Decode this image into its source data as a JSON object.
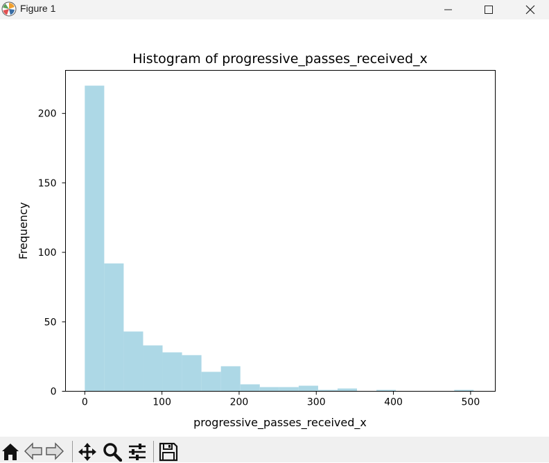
{
  "window": {
    "title": "Figure 1"
  },
  "toolbar": {
    "tools": [
      "home-icon",
      "back-icon",
      "forward-icon",
      "pan-icon",
      "zoom-icon",
      "configure-subplots-icon",
      "save-icon"
    ]
  },
  "chart_data": {
    "type": "bar",
    "title": "Histogram of progressive_passes_received_x",
    "xlabel": "progressive_passes_received_x",
    "ylabel": "Frequency",
    "bar_color": "#add8e6",
    "xlim": [
      -25,
      532
    ],
    "ylim": [
      0,
      231
    ],
    "xticks": [
      0,
      100,
      200,
      300,
      400,
      500
    ],
    "yticks": [
      0,
      50,
      100,
      150,
      200
    ],
    "bin_edges": [
      0,
      25.2,
      50.4,
      75.6,
      100.8,
      126,
      151.2,
      176.4,
      201.6,
      226.8,
      252,
      277.2,
      302.4,
      327.6,
      352.8,
      378,
      403.2,
      428.4,
      453.6,
      478.8,
      504
    ],
    "values": [
      220,
      92,
      43,
      33,
      28,
      26,
      14,
      18,
      5,
      3,
      3,
      4,
      1,
      2,
      0,
      1,
      0,
      0,
      0,
      1
    ],
    "grid": false,
    "legend": "none"
  }
}
